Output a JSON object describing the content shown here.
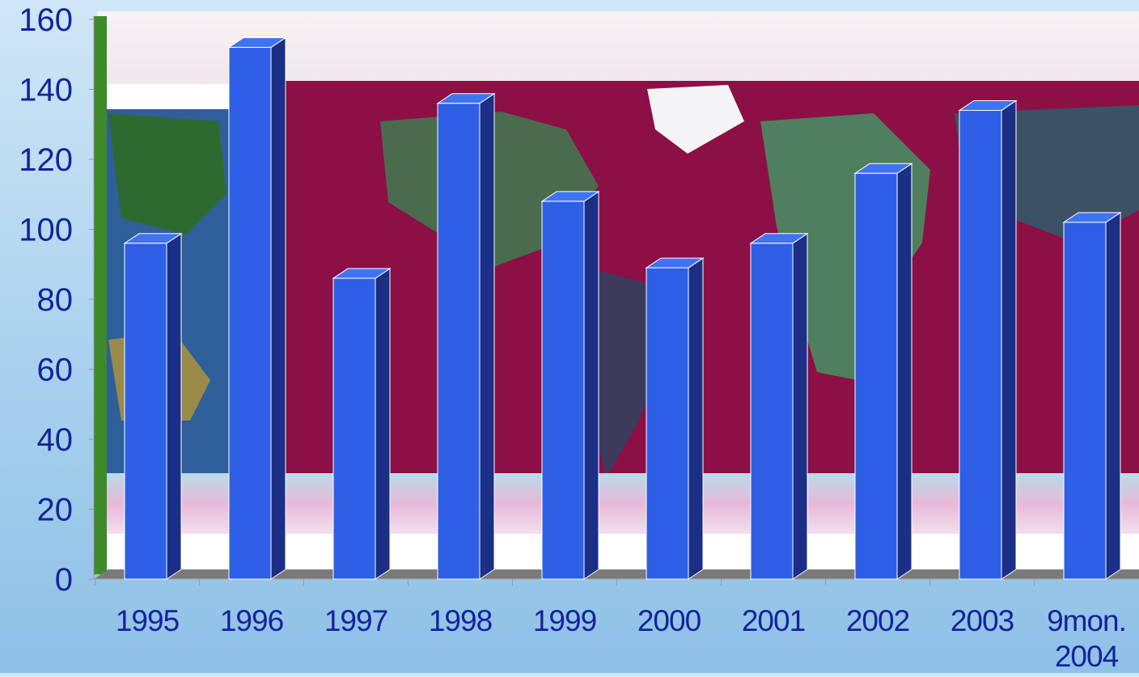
{
  "colors": {
    "bar_front": "#2f5fe6",
    "bar_side": "#1b2f86",
    "bar_top": "#3f73f2",
    "axis_text": "#13239c",
    "floor": "#7a7a7a",
    "ocean": "#8c0f45",
    "land": "#4a6b4e"
  },
  "chart_data": {
    "type": "bar",
    "categories": [
      "1995",
      "1996",
      "1997",
      "1998",
      "1999",
      "2000",
      "2001",
      "2002",
      "2003",
      "9mon. 2004"
    ],
    "values": [
      96,
      152,
      86,
      136,
      108,
      89,
      96,
      116,
      134,
      102
    ],
    "title": "",
    "xlabel": "",
    "ylabel": "",
    "ylim": [
      0,
      160
    ],
    "yticks": [
      0,
      20,
      40,
      60,
      80,
      100,
      120,
      140,
      160
    ],
    "grid": false,
    "style": "3d-columns",
    "background": "world-map"
  }
}
